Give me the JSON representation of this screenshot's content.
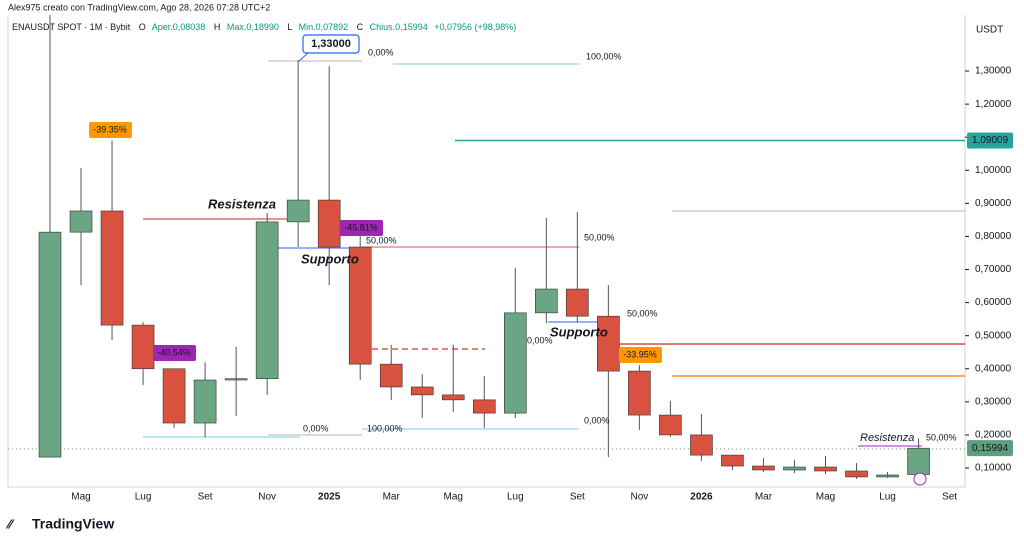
{
  "chart_data": {
    "type": "candlestick",
    "watermark": "Alex975 creato con TradingView.com, Ago 28, 2026 07:28 UTC+2",
    "header": [
      "ENAUSDT SPOT · 1M · Bybit",
      "O",
      "Aper.0,08038",
      "H",
      "Max.0,18990",
      "L",
      "Min.0,07892",
      "C",
      "Chius.0,15994",
      "+0,07956 (+98,98%)"
    ],
    "currency": "USDT",
    "logo": "TradingView",
    "categories": [
      null,
      "Mag",
      null,
      "Lug",
      null,
      "Set",
      null,
      "Nov",
      null,
      "2025",
      null,
      "Mar",
      null,
      "Mag",
      null,
      "Lug",
      null,
      "Set",
      null,
      "Nov",
      null,
      "2026",
      null,
      "Mar",
      null,
      "Mag",
      null,
      "Lug",
      null,
      "Set"
    ],
    "open": [
      0.133,
      0.813,
      0.877,
      0.532,
      0.4,
      0.236,
      0.366,
      0.37,
      0.844,
      0.91,
      0.768,
      0.414,
      0.345,
      0.321,
      0.306,
      0.266,
      0.569,
      0.641,
      0.559,
      0.393,
      0.26,
      0.2,
      0.139,
      0.106,
      0.094,
      0.103,
      0.091,
      0.073,
      0.08038,
      null
    ],
    "high": [
      1.52,
      1.007,
      1.09,
      0.541,
      0.4,
      0.42,
      0.466,
      0.871,
      1.333,
      1.315,
      0.82,
      0.472,
      0.384,
      0.472,
      0.378,
      0.705,
      0.856,
      0.874,
      0.653,
      0.411,
      0.303,
      0.263,
      0.139,
      0.13,
      0.124,
      0.136,
      0.115,
      0.088,
      0.1899,
      null
    ],
    "low": [
      0.133,
      0.653,
      0.487,
      0.351,
      0.221,
      0.194,
      0.257,
      0.321,
      0.768,
      0.653,
      0.366,
      0.306,
      0.251,
      0.269,
      0.221,
      0.251,
      0.538,
      0.541,
      0.133,
      0.215,
      0.194,
      0.121,
      0.094,
      0.088,
      0.085,
      0.082,
      0.067,
      0.07,
      0.07892,
      null
    ],
    "close": [
      0.813,
      0.877,
      0.532,
      0.4,
      0.236,
      0.366,
      0.37,
      0.844,
      0.91,
      0.768,
      0.414,
      0.345,
      0.321,
      0.306,
      0.266,
      0.569,
      0.641,
      0.559,
      0.393,
      0.26,
      0.2,
      0.139,
      0.106,
      0.094,
      0.103,
      0.091,
      0.073,
      0.079,
      0.15994,
      null
    ],
    "up_color": "#6aa584",
    "down_color": "#d9513f",
    "ylim": [
      0.0426,
      1.4543
    ],
    "yticks": [
      {
        "value": 0.1,
        "label": "0,10000"
      },
      {
        "value": 0.2,
        "label": "0,20000"
      },
      {
        "value": 0.3,
        "label": "0,30000"
      },
      {
        "value": 0.4,
        "label": "0,40000"
      },
      {
        "value": 0.5,
        "label": "0,50000"
      },
      {
        "value": 0.6,
        "label": "0,60000"
      },
      {
        "value": 0.7,
        "label": "0,70000"
      },
      {
        "value": 0.8,
        "label": "0,80000"
      },
      {
        "value": 0.9,
        "label": "0,90000"
      },
      {
        "value": 1.0,
        "label": "1,00000"
      },
      {
        "value": 1.1,
        "label": "1,10000"
      },
      {
        "value": 1.2,
        "label": "1,20000"
      },
      {
        "value": 1.3,
        "label": "1,30000"
      }
    ],
    "price_lines": [
      {
        "value": 1.09009,
        "label": "1,09009",
        "color": "#26a69a"
      },
      {
        "value": 0.15994,
        "label": "0,15994",
        "color": "#5f9e7d"
      }
    ],
    "annotations": [
      "Resistenza",
      "Supporto",
      "Supporto",
      "Resistenza"
    ],
    "percent_tags": [
      "-39.35%",
      "-40.54%",
      "-45.81%",
      "-33.95%"
    ],
    "callout": "1,33000",
    "fib_labels": [
      "0,00%",
      "100,00%",
      "50,00%",
      "50,00%",
      "0,00%",
      "50,00%",
      "0,00%",
      "0,00%",
      "100,00%",
      "50,00%"
    ]
  }
}
